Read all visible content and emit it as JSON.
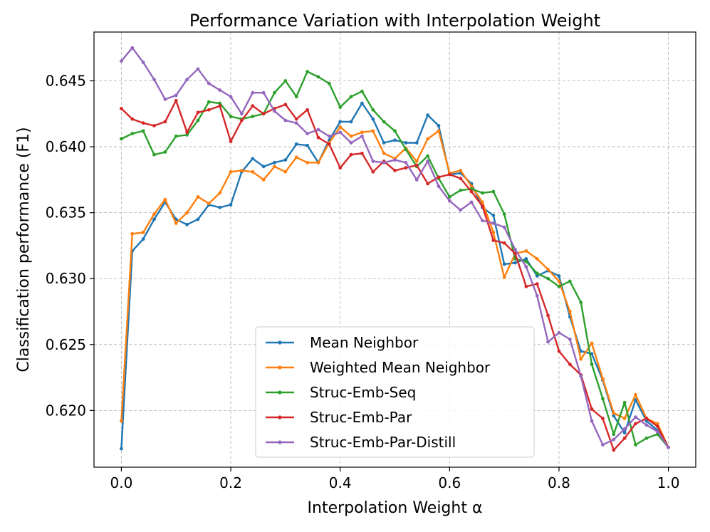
{
  "chart_data": {
    "type": "line",
    "title": "Performance Variation with Interpolation Weight",
    "xlabel": "Interpolation Weight α",
    "ylabel": "Classification performance (F1)",
    "xlim": [
      -0.05,
      1.05
    ],
    "ylim": [
      0.6157,
      0.6487
    ],
    "xticks": [
      0.0,
      0.2,
      0.4,
      0.6,
      0.8,
      1.0
    ],
    "xtick_labels": [
      "0.0",
      "0.2",
      "0.4",
      "0.6",
      "0.8",
      "1.0"
    ],
    "yticks": [
      0.62,
      0.625,
      0.63,
      0.635,
      0.64,
      0.645
    ],
    "ytick_labels": [
      "0.620",
      "0.625",
      "0.630",
      "0.635",
      "0.640",
      "0.645"
    ],
    "grid": true,
    "legend_position": "lower-center",
    "x": [
      0.0,
      0.02,
      0.04,
      0.06,
      0.08,
      0.1,
      0.12,
      0.14,
      0.16,
      0.18,
      0.2,
      0.22,
      0.24,
      0.26,
      0.28,
      0.3,
      0.32,
      0.34,
      0.36,
      0.38,
      0.4,
      0.42,
      0.44,
      0.46,
      0.48,
      0.5,
      0.52,
      0.54,
      0.56,
      0.58,
      0.6,
      0.62,
      0.64,
      0.66,
      0.68,
      0.7,
      0.72,
      0.74,
      0.76,
      0.78,
      0.8,
      0.82,
      0.84,
      0.86,
      0.88,
      0.9,
      0.92,
      0.94,
      0.96,
      0.98,
      1.0
    ],
    "series": [
      {
        "name": "Mean Neighbor",
        "color": "#1f77b4",
        "values": [
          0.6171,
          0.6321,
          0.633,
          0.6345,
          0.6358,
          0.6345,
          0.6341,
          0.6345,
          0.6356,
          0.6354,
          0.6356,
          0.6381,
          0.6391,
          0.6385,
          0.6388,
          0.639,
          0.6402,
          0.6401,
          0.6388,
          0.6405,
          0.6419,
          0.6419,
          0.6433,
          0.6421,
          0.6403,
          0.6405,
          0.6403,
          0.6403,
          0.6424,
          0.6416,
          0.6379,
          0.638,
          0.6372,
          0.6354,
          0.6348,
          0.6311,
          0.6312,
          0.6315,
          0.6302,
          0.6306,
          0.6302,
          0.6271,
          0.6245,
          0.6243,
          0.6223,
          0.6196,
          0.6183,
          0.6208,
          0.6192,
          0.6185,
          0.6172
        ]
      },
      {
        "name": "Weighted Mean Neighbor",
        "color": "#ff7f0e",
        "values": [
          0.6192,
          0.6334,
          0.6335,
          0.6349,
          0.636,
          0.6342,
          0.635,
          0.6362,
          0.6357,
          0.6365,
          0.6381,
          0.6382,
          0.6381,
          0.6375,
          0.6385,
          0.6381,
          0.6392,
          0.6388,
          0.6388,
          0.6403,
          0.6415,
          0.6408,
          0.6411,
          0.6412,
          0.6395,
          0.6391,
          0.6399,
          0.6389,
          0.6406,
          0.6412,
          0.638,
          0.6382,
          0.637,
          0.6358,
          0.6335,
          0.6301,
          0.6319,
          0.6321,
          0.6315,
          0.6307,
          0.6298,
          0.6275,
          0.6239,
          0.6251,
          0.6224,
          0.6198,
          0.6194,
          0.6212,
          0.6194,
          0.619,
          0.6172
        ]
      },
      {
        "name": "Struc-Emb-Seq",
        "color": "#2ca02c",
        "values": [
          0.6406,
          0.641,
          0.6412,
          0.6394,
          0.6396,
          0.6408,
          0.6409,
          0.642,
          0.6434,
          0.6433,
          0.6423,
          0.6421,
          0.6423,
          0.6425,
          0.6441,
          0.645,
          0.6438,
          0.6457,
          0.6453,
          0.6448,
          0.643,
          0.6438,
          0.6442,
          0.6428,
          0.6419,
          0.6412,
          0.6398,
          0.6385,
          0.6393,
          0.6376,
          0.6362,
          0.6367,
          0.6368,
          0.6365,
          0.6366,
          0.6349,
          0.6315,
          0.6313,
          0.6304,
          0.63,
          0.6294,
          0.6298,
          0.6282,
          0.6235,
          0.6209,
          0.6182,
          0.6206,
          0.6174,
          0.6179,
          0.6182,
          0.6172
        ]
      },
      {
        "name": "Struc-Emb-Par",
        "color": "#d62728",
        "values": [
          0.6429,
          0.6421,
          0.6418,
          0.6416,
          0.6419,
          0.6435,
          0.6411,
          0.6426,
          0.6428,
          0.6431,
          0.6404,
          0.642,
          0.6431,
          0.6425,
          0.6429,
          0.6432,
          0.6421,
          0.6428,
          0.6407,
          0.6402,
          0.6384,
          0.6394,
          0.6395,
          0.6381,
          0.6389,
          0.6382,
          0.6384,
          0.6386,
          0.6372,
          0.6377,
          0.6379,
          0.6376,
          0.6366,
          0.6355,
          0.6329,
          0.6327,
          0.6319,
          0.6294,
          0.6296,
          0.6272,
          0.6245,
          0.6235,
          0.6227,
          0.6201,
          0.6194,
          0.617,
          0.6179,
          0.619,
          0.6194,
          0.6188,
          0.6172
        ]
      },
      {
        "name": "Struc-Emb-Par-Distill",
        "color": "#9467bd",
        "values": [
          0.6465,
          0.6475,
          0.6464,
          0.6451,
          0.6436,
          0.6439,
          0.6451,
          0.6459,
          0.6448,
          0.6443,
          0.6438,
          0.6425,
          0.6441,
          0.6441,
          0.6427,
          0.642,
          0.6418,
          0.641,
          0.6413,
          0.6408,
          0.6411,
          0.6403,
          0.6408,
          0.6389,
          0.6388,
          0.639,
          0.6388,
          0.6375,
          0.6389,
          0.637,
          0.6359,
          0.6352,
          0.6358,
          0.6344,
          0.6342,
          0.6339,
          0.6322,
          0.6309,
          0.6287,
          0.6252,
          0.6259,
          0.6254,
          0.6226,
          0.6192,
          0.6174,
          0.6178,
          0.6186,
          0.6195,
          0.6189,
          0.6184,
          0.6172
        ]
      }
    ]
  }
}
